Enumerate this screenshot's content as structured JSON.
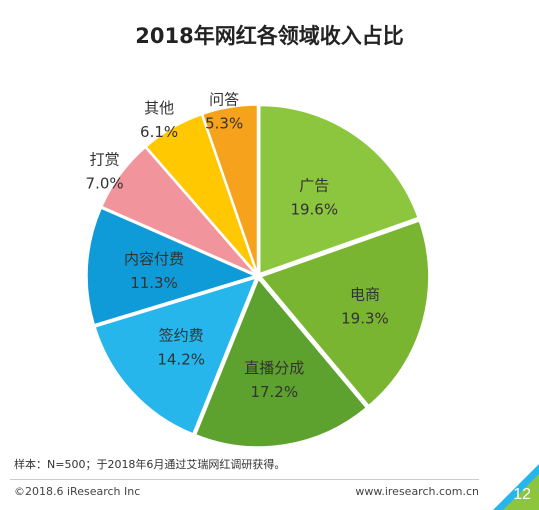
{
  "chart_data": {
    "type": "pie",
    "title": "2018年网红各领域收入占比",
    "slices": [
      {
        "label": "广告",
        "value": 19.6,
        "value_label": "19.6%",
        "color": "#8cc63f",
        "label_color": "#333333"
      },
      {
        "label": "电商",
        "value": 19.3,
        "value_label": "19.3%",
        "color": "#7ab532",
        "label_color": "#333333"
      },
      {
        "label": "直播分成",
        "value": 17.2,
        "value_label": "17.2%",
        "color": "#5da22e",
        "label_color": "#333333"
      },
      {
        "label": "签约费",
        "value": 14.2,
        "value_label": "14.2%",
        "color": "#27b6ec",
        "label_color": "#333333"
      },
      {
        "label": "内容付费",
        "value": 11.3,
        "value_label": "11.3%",
        "color": "#0f9bd7",
        "label_color": "#333333"
      },
      {
        "label": "打赏",
        "value": 7.0,
        "value_label": "7.0%",
        "color": "#f2949b",
        "label_color": "#333333"
      },
      {
        "label": "其他",
        "value": 6.1,
        "value_label": "6.1%",
        "color": "#ffc800",
        "label_color": "#333333"
      },
      {
        "label": "问答",
        "value": 5.3,
        "value_label": "5.3%",
        "color": "#f7a21c",
        "label_color": "#333333"
      }
    ]
  },
  "note": "样本：N=500；于2018年6月通过艾瑞网红调研获得。",
  "footer": {
    "copyright": "©2018.6 iResearch Inc",
    "website": "www.iresearch.com.cn",
    "page_number": "12"
  },
  "colors": {
    "corner_green": "#8cc63f",
    "corner_blue": "#27b6ec"
  }
}
